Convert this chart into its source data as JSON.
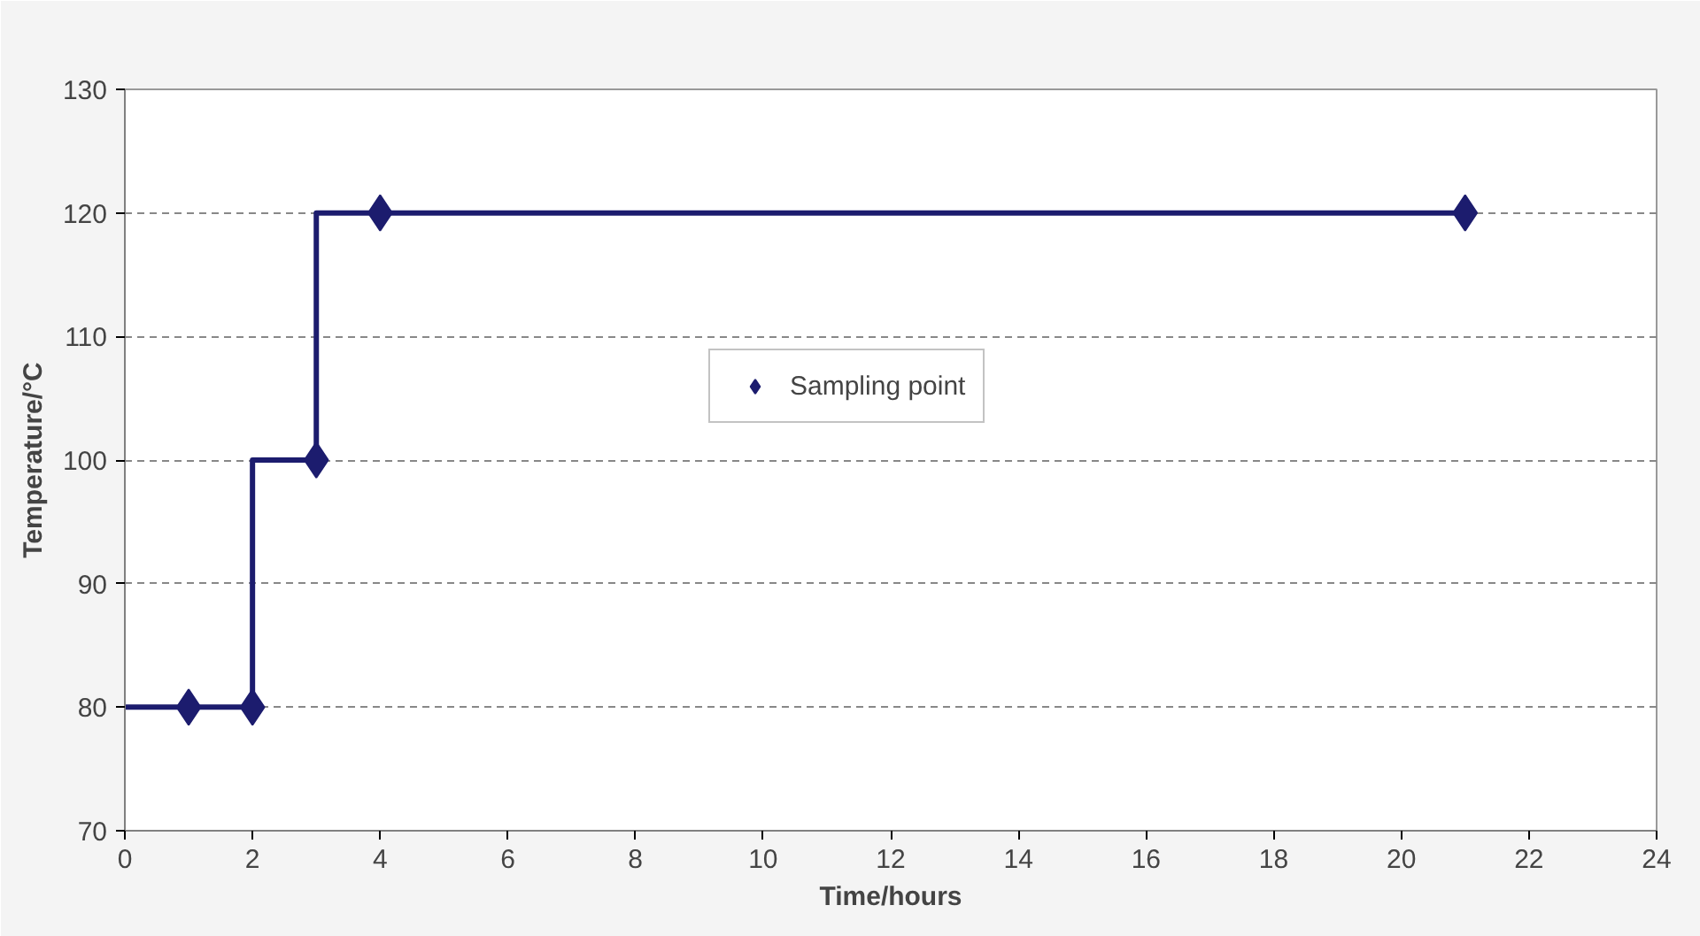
{
  "chart_data": {
    "type": "line",
    "xlabel": "Time/hours",
    "ylabel": "Temperature/°C",
    "xlim": [
      0,
      24
    ],
    "xticks": [
      0,
      2,
      4,
      6,
      8,
      10,
      12,
      14,
      16,
      18,
      20,
      22,
      24
    ],
    "ylim": [
      70,
      130
    ],
    "yticks": [
      70,
      80,
      90,
      100,
      110,
      120,
      130
    ],
    "grid": "y",
    "legend": "center",
    "series": [
      {
        "color": "#1c1c6e",
        "marker": "none",
        "line_style": "solid",
        "x": [
          0,
          2,
          2,
          3,
          3,
          21
        ],
        "values": [
          80,
          80,
          100,
          100,
          120,
          120
        ]
      },
      {
        "type": "scatter",
        "name": "Sampling point",
        "color": "#1c1c6e",
        "marker": "diamond",
        "x": [
          1,
          2,
          3,
          4,
          21
        ],
        "values": [
          80,
          80,
          100,
          120,
          120
        ]
      }
    ]
  }
}
